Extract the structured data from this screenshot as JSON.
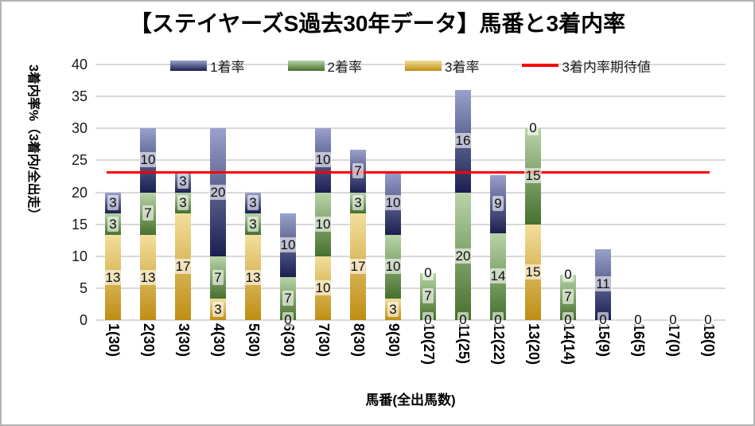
{
  "chart_data": {
    "type": "bar",
    "stacked": true,
    "title": "【ステイヤーズS過去30年データ】馬番と3着内率",
    "xlabel": "馬番(全出馬数)",
    "ylabel": "3着内率%（3着内/全出走）",
    "ylim": [
      0,
      40
    ],
    "y_ticks": [
      0,
      5,
      10,
      15,
      20,
      25,
      30,
      35,
      40
    ],
    "grid": true,
    "legend_position": "top-center",
    "background_color": "#ffffff",
    "gridline_color": "#d9d9d9",
    "categories": [
      "1(30)",
      "2(30)",
      "3(30)",
      "4(30)",
      "5(30)",
      "6(30)",
      "7(30)",
      "8(30)",
      "9(30)",
      "10(27)",
      "11(25)",
      "12(22)",
      "13(20)",
      "14(14)",
      "15(9)",
      "16(5)",
      "17(0)",
      "18(0)"
    ],
    "series": [
      {
        "name": "1着率",
        "color_top": "#9aa1cc",
        "color_bottom": "#1a1f50",
        "values": [
          3.33,
          10,
          3.33,
          20,
          3.33,
          10,
          10,
          6.67,
          10,
          0,
          16,
          9.09,
          0,
          0,
          11.11,
          0,
          0,
          0
        ],
        "labels": [
          "3",
          "10",
          "3",
          "20",
          "3",
          "10",
          "10",
          "7",
          "10",
          "0",
          "16",
          "9",
          "0",
          "0",
          "11",
          null,
          null,
          null
        ]
      },
      {
        "name": "2着率",
        "color_top": "#b8d4a8",
        "color_bottom": "#46702d",
        "values": [
          3.33,
          6.67,
          3.33,
          6.67,
          3.33,
          6.67,
          10,
          3.33,
          10,
          7.41,
          20,
          13.64,
          15,
          7.14,
          0,
          0,
          0,
          0
        ],
        "labels": [
          "3",
          "7",
          "3",
          "7",
          "3",
          "7",
          "10",
          "3",
          "10",
          "7",
          "20",
          "14",
          "15",
          "7",
          null,
          null,
          null,
          null
        ]
      },
      {
        "name": "3着率",
        "color_top": "#f2df9d",
        "color_bottom": "#bf8d13",
        "values": [
          13.33,
          13.33,
          16.67,
          3.33,
          13.33,
          0,
          10,
          16.67,
          3.33,
          0,
          0,
          0,
          15,
          0,
          0,
          0,
          0,
          0
        ],
        "labels": [
          "13",
          "13",
          "17",
          "3",
          "13",
          "0",
          "10",
          "17",
          "3",
          "0",
          "0",
          "0",
          "15",
          "0",
          "0",
          "0",
          "0",
          "0"
        ]
      }
    ],
    "expected_line": {
      "name": "3着内率期待値",
      "value": 23,
      "color": "#ff0000"
    }
  }
}
